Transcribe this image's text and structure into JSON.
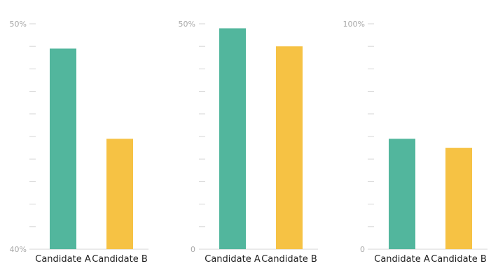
{
  "chart_data": [
    {
      "type": "bar",
      "categories": [
        "Candidate A",
        "Candidate B"
      ],
      "values": [
        48.9,
        44.9
      ],
      "ylim": [
        40,
        50
      ],
      "y_tick_labels": [
        "40%",
        "50%"
      ],
      "minor_ticks": 9,
      "colors": [
        "#52b69d",
        "#f6c244"
      ]
    },
    {
      "type": "bar",
      "categories": [
        "Candidate A",
        "Candidate B"
      ],
      "values": [
        49,
        45
      ],
      "ylim": [
        0,
        50
      ],
      "y_tick_labels": [
        "0",
        "50%"
      ],
      "minor_ticks": 9,
      "colors": [
        "#52b69d",
        "#f6c244"
      ]
    },
    {
      "type": "bar",
      "categories": [
        "Candidate A",
        "Candidate B"
      ],
      "values": [
        49,
        45
      ],
      "ylim": [
        0,
        100
      ],
      "y_tick_labels": [
        "0",
        "100%"
      ],
      "minor_ticks": 9,
      "colors": [
        "#52b69d",
        "#f6c244"
      ]
    }
  ]
}
